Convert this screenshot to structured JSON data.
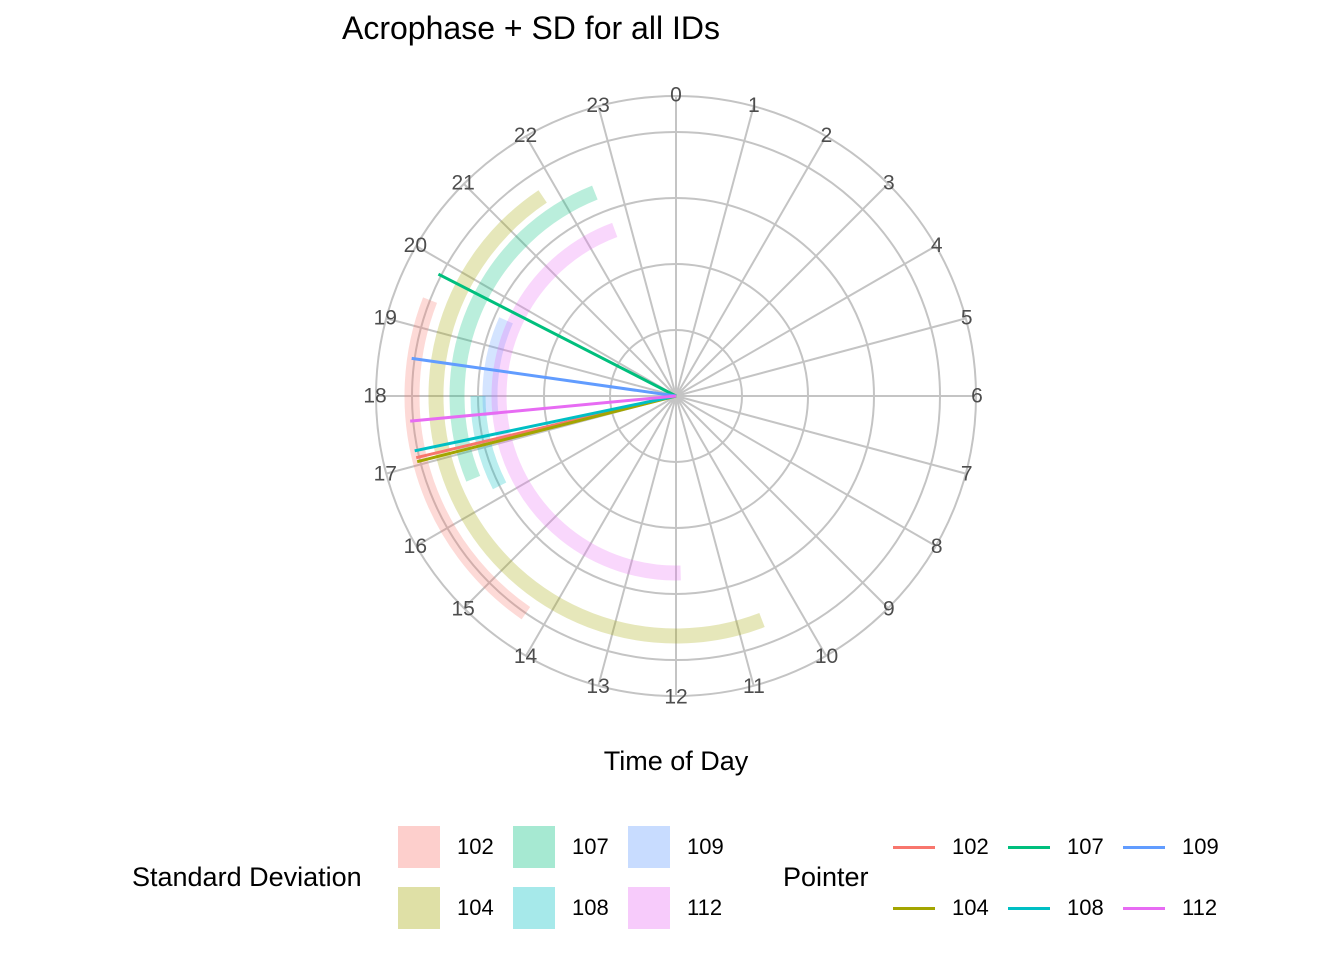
{
  "chart_data": {
    "type": "polar",
    "title": "Acrophase + SD for all IDs",
    "xlabel": "Time of Day",
    "theta_ticks": [
      "0",
      "1",
      "2",
      "3",
      "4",
      "5",
      "6",
      "7",
      "8",
      "9",
      "10",
      "11",
      "12",
      "13",
      "14",
      "15",
      "16",
      "17",
      "18",
      "19",
      "20",
      "21",
      "22",
      "23"
    ],
    "theta_range": [
      0,
      24
    ],
    "grid": true,
    "legend_position": "bottom",
    "sd_legend_title": "Standard Deviation",
    "pointer_legend_title": "Pointer",
    "series": [
      {
        "name": "102",
        "color": "#F8766D",
        "acrophase": 17.11,
        "sd_start": 14.31,
        "sd_end": 19.42,
        "sd_ring": 0.88
      },
      {
        "name": "104",
        "color": "#A3A500",
        "acrophase": 17.05,
        "sd_start": 10.6,
        "sd_end": 21.75,
        "sd_ring": 0.8
      },
      {
        "name": "107",
        "color": "#00BF7D",
        "acrophase": 19.81,
        "sd_start": 16.52,
        "sd_end": 22.55,
        "sd_ring": 0.73
      },
      {
        "name": "108",
        "color": "#00B0F6",
        "pointer_color": "#00BFC4",
        "sd_color": "#00BFC4",
        "acrophase": 17.21,
        "sd_start": 16.2,
        "sd_end": 18.0,
        "sd_ring": 0.66
      },
      {
        "name": "109",
        "color": "#619CFF",
        "acrophase": 18.54,
        "sd_start": 17.6,
        "sd_end": 19.6,
        "sd_ring": 0.62
      },
      {
        "name": "112",
        "color": "#E76BF3",
        "acrophase": 17.64,
        "sd_start": 11.9,
        "sd_end": 22.65,
        "sd_ring": 0.59
      }
    ]
  }
}
